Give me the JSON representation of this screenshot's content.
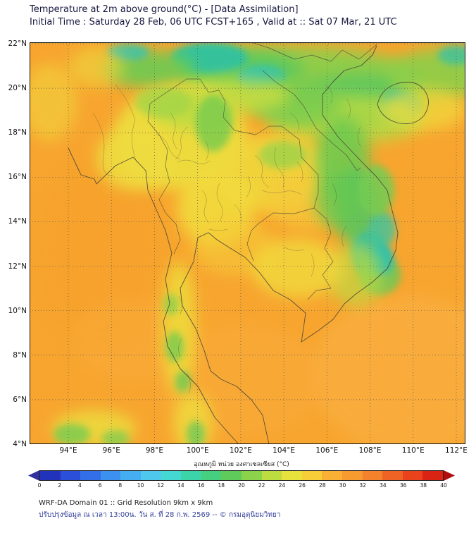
{
  "header": {
    "title": "Temperature at 2m above ground(°C) - [Data Assimilation]",
    "subtitle": "Initial Time : Saturday 28 Feb, 06 UTC FCST+165 , Valid at :: Sat 07 Mar, 21 UTC"
  },
  "map": {
    "x_tick_labels": [
      "94°E",
      "96°E",
      "98°E",
      "100°E",
      "102°E",
      "104°E",
      "106°E",
      "108°E",
      "110°E",
      "112°E"
    ],
    "y_tick_labels": [
      "22°N",
      "20°N",
      "18°N",
      "16°N",
      "14°N",
      "12°N",
      "10°N",
      "8°N",
      "6°N",
      "4°N"
    ],
    "base_color": "#F7A52F",
    "boundary_color": "#4A4536"
  },
  "colorbar": {
    "label": "อุณหภูมิ หน่วย องศาเซลเซียส (°C)",
    "tick_labels": [
      "0",
      "2",
      "4",
      "6",
      "8",
      "10",
      "12",
      "14",
      "16",
      "18",
      "20",
      "22",
      "24",
      "26",
      "28",
      "30",
      "32",
      "34",
      "36",
      "38",
      "40"
    ],
    "segment_colors": [
      "#2233BB",
      "#2B4FD8",
      "#336FE8",
      "#3B90F0",
      "#45AEF2",
      "#4FC8EE",
      "#45D8D2",
      "#3CD3A8",
      "#46CF7E",
      "#5FCB5A",
      "#8AD34A",
      "#BCDC40",
      "#E8E23C",
      "#F7CE38",
      "#F9B035",
      "#F79A30",
      "#F4812B",
      "#EF6424",
      "#E8431C",
      "#D92414"
    ],
    "under_arrow_color": "#2F2F9F",
    "over_arrow_color": "#AE0E0E"
  },
  "footer": {
    "line1": "WRF-DA Domain 01 :: Grid Resolution 9km x 9km",
    "line2": "ปรับปรุงข้อมูล ณ เวลา 13:00น. วัน ส. ที่ 28 ก.พ. 2569 -- © กรมอุตุนิยมวิทยา"
  },
  "chart_data": {
    "type": "heatmap",
    "title": "Temperature at 2m above ground(°C)",
    "value_range_c": [
      0,
      40
    ],
    "x_range": [
      94,
      112
    ],
    "x_unit": "°E",
    "y_range": [
      4,
      22
    ],
    "y_unit": "°N",
    "grid": "dotted, 2-degree spacing",
    "regions": [
      {
        "area": "sea (Andaman Sea, Gulf of Thailand, South China Sea)",
        "approx_temp_c": 28
      },
      {
        "area": "central Thailand plain and Cambodia lowlands",
        "approx_temp_c": 25
      },
      {
        "area": "northern Thailand highlands",
        "approx_temp_c": 23
      },
      {
        "area": "far north band (northern Laos / northern Vietnam, 20-22°N)",
        "approx_temp_c": 19
      },
      {
        "area": "Annamite range along Vietnam coast",
        "approx_temp_c": 20
      },
      {
        "area": "coolest teal spots (far north, Hainan, 12°N highlands)",
        "approx_temp_c": 16
      },
      {
        "area": "peninsula interior and Sumatra tip",
        "approx_temp_c": 24
      }
    ]
  }
}
